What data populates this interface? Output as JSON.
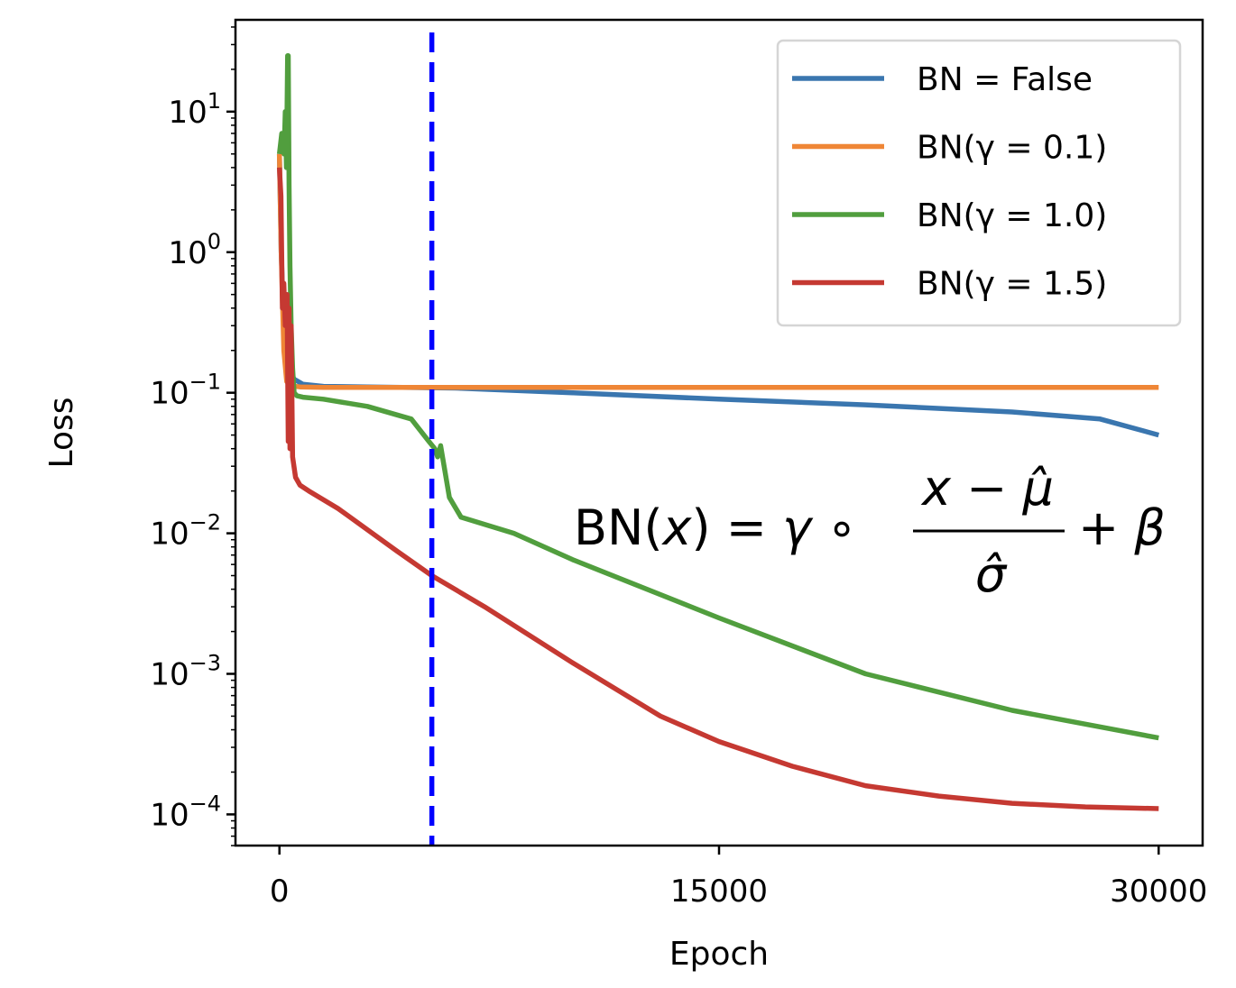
{
  "chart_data": {
    "type": "line",
    "xlabel": "Epoch",
    "ylabel": "Loss",
    "xlim": [
      -1500,
      31500
    ],
    "ylim": [
      6e-05,
      45
    ],
    "yscale": "log",
    "xticks": [
      0,
      15000,
      30000
    ],
    "xtick_labels": [
      "0",
      "15000",
      "30000"
    ],
    "yticks": [
      0.0001,
      0.001,
      0.01,
      0.1,
      1,
      10
    ],
    "ytick_labels": [
      {
        "base": "10",
        "exp": "−4"
      },
      {
        "base": "10",
        "exp": "−3"
      },
      {
        "base": "10",
        "exp": "−2"
      },
      {
        "base": "10",
        "exp": "−1"
      },
      {
        "base": "10",
        "exp": "0"
      },
      {
        "base": "10",
        "exp": "1"
      }
    ],
    "grid": false,
    "legend_position": "top-right",
    "vline": {
      "x": 5200,
      "color": "#0000ff",
      "style": "dashed"
    },
    "annotation": {
      "text": "BN(x) = γ ∘ (x − μ̂) / σ̂ + β",
      "x": 10000,
      "y": 0.01
    },
    "series": [
      {
        "name": "BN = False",
        "color": "#3a76af",
        "x": [
          0,
          60,
          150,
          300,
          500,
          800,
          1500,
          3000,
          6000,
          10000,
          15000,
          20000,
          25000,
          28000,
          30000
        ],
        "y": [
          5,
          1.0,
          0.3,
          0.15,
          0.125,
          0.115,
          0.111,
          0.11,
          0.108,
          0.1,
          0.09,
          0.082,
          0.073,
          0.065,
          0.05
        ]
      },
      {
        "name": "BN(γ = 0.1)",
        "color": "#ef8636",
        "x": [
          0,
          60,
          150,
          250,
          400,
          700,
          1500,
          5000,
          15000,
          30000
        ],
        "y": [
          5,
          1.0,
          0.2,
          0.12,
          0.112,
          0.11,
          0.109,
          0.109,
          0.109,
          0.109
        ]
      },
      {
        "name": "BN(γ = 1.0)",
        "color": "#519e3e",
        "x": [
          0,
          80,
          160,
          200,
          240,
          280,
          300,
          330,
          360,
          400,
          450,
          500,
          600,
          800,
          1500,
          3000,
          4500,
          5100,
          5300,
          5400,
          5500,
          5800,
          6200,
          8000,
          10000,
          15000,
          20000,
          25000,
          30000
        ],
        "y": [
          5,
          7,
          5,
          10,
          4,
          25,
          25,
          3,
          0.8,
          0.3,
          0.15,
          0.1,
          0.095,
          0.093,
          0.09,
          0.08,
          0.065,
          0.045,
          0.04,
          0.035,
          0.042,
          0.018,
          0.013,
          0.01,
          0.0065,
          0.0025,
          0.001,
          0.00055,
          0.00035
        ]
      },
      {
        "name": "BN(γ = 1.5)",
        "color": "#c53932",
        "x": [
          0,
          50,
          100,
          150,
          200,
          260,
          300,
          330,
          360,
          400,
          450,
          550,
          700,
          1000,
          2000,
          4000,
          5200,
          7000,
          10000,
          13000,
          15000,
          17500,
          20000,
          22500,
          25000,
          27500,
          30000
        ],
        "y": [
          4,
          2.5,
          0.4,
          0.6,
          0.3,
          0.5,
          0.045,
          0.4,
          0.04,
          0.3,
          0.035,
          0.025,
          0.022,
          0.02,
          0.015,
          0.0075,
          0.005,
          0.003,
          0.0012,
          0.0005,
          0.00033,
          0.00022,
          0.00016,
          0.000135,
          0.00012,
          0.000113,
          0.00011
        ]
      }
    ]
  }
}
